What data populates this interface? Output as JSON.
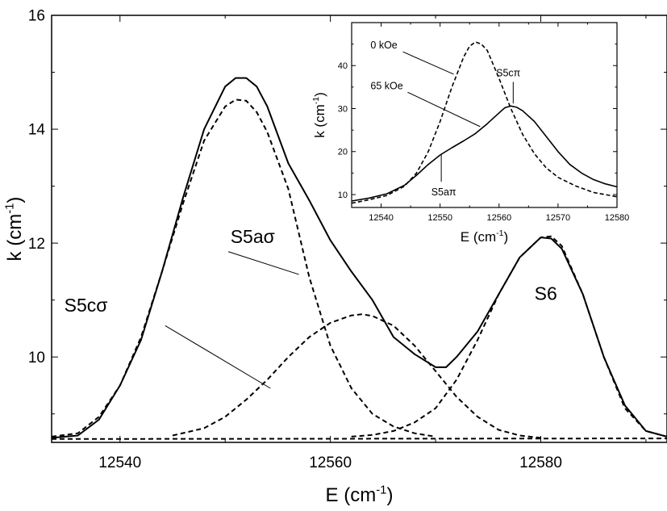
{
  "chart_data": [
    {
      "type": "line",
      "xlabel_base": "E (cm",
      "xlabel_sup": "-1",
      "xlabel_end": ")",
      "ylabel_base": "k (cm",
      "ylabel_sup": "-1",
      "ylabel_end": ")",
      "xlim": [
        12533.5,
        12592
      ],
      "ylim": [
        8.5,
        16
      ],
      "xticks": [
        "12540",
        "12560",
        "12580"
      ],
      "xtick_values": [
        12540,
        12560,
        12580
      ],
      "yticks": [
        "10",
        "12",
        "14",
        "16"
      ],
      "ytick_values": [
        10,
        12,
        14,
        16
      ],
      "grid": false,
      "series": [
        {
          "style": "solid",
          "x": [
            12533.5,
            12536,
            12538,
            12540,
            12542,
            12544,
            12546,
            12548,
            12550,
            12551,
            12552,
            12553,
            12554,
            12556,
            12558,
            12560,
            12562,
            12564,
            12566,
            12568,
            12570,
            12571,
            12572,
            12574,
            12576,
            12578,
            12580,
            12581,
            12582,
            12584,
            12586,
            12588,
            12590,
            12592
          ],
          "y": [
            8.58,
            8.62,
            8.9,
            9.5,
            10.3,
            11.5,
            12.8,
            14.0,
            14.75,
            14.9,
            14.9,
            14.75,
            14.4,
            13.4,
            12.75,
            12.05,
            11.5,
            11.0,
            10.35,
            10.05,
            9.82,
            9.82,
            10.0,
            10.45,
            11.1,
            11.75,
            12.1,
            12.08,
            11.9,
            11.1,
            10.0,
            9.15,
            8.7,
            8.6
          ]
        },
        {
          "style": "dashed",
          "x": [
            12533.5,
            12536,
            12538,
            12540,
            12542,
            12544,
            12546,
            12548,
            12550,
            12551,
            12552,
            12553,
            12554,
            12556,
            12558,
            12560,
            12562,
            12564,
            12566,
            12568,
            12570
          ],
          "y": [
            8.6,
            8.66,
            8.95,
            9.5,
            10.35,
            11.5,
            12.7,
            13.8,
            14.4,
            14.52,
            14.5,
            14.3,
            13.95,
            12.95,
            11.4,
            10.2,
            9.45,
            9.0,
            8.78,
            8.66,
            8.6
          ]
        },
        {
          "style": "dashed",
          "x": [
            12545,
            12548,
            12550,
            12552,
            12554,
            12556,
            12558,
            12560,
            12562,
            12563,
            12564,
            12566,
            12568,
            12570,
            12572,
            12574,
            12576,
            12578,
            12580
          ],
          "y": [
            8.62,
            8.75,
            8.95,
            9.25,
            9.6,
            10.0,
            10.35,
            10.6,
            10.73,
            10.75,
            10.72,
            10.55,
            10.2,
            9.75,
            9.3,
            8.95,
            8.72,
            8.62,
            8.58
          ]
        },
        {
          "style": "dashed",
          "x": [
            12562,
            12564,
            12566,
            12568,
            12570,
            12572,
            12574,
            12576,
            12578,
            12580,
            12581,
            12582,
            12584,
            12586,
            12588,
            12590,
            12592
          ],
          "y": [
            8.6,
            8.63,
            8.7,
            8.85,
            9.1,
            9.6,
            10.3,
            11.1,
            11.75,
            12.1,
            12.12,
            11.95,
            11.1,
            10.0,
            9.1,
            8.7,
            8.6
          ]
        },
        {
          "style": "dashed",
          "x": [
            12533.5,
            12592
          ],
          "y": [
            8.56,
            8.57
          ]
        }
      ],
      "annotations": [
        {
          "text": "S5aσ",
          "x": 12550.5,
          "y": 12.0,
          "ptr_from": [
            12550.3,
            11.85
          ],
          "ptr_to": [
            12557.0,
            11.45
          ]
        },
        {
          "text": "S5cσ",
          "x": 12534.7,
          "y": 10.8,
          "ptr_from": [
            12544.3,
            10.55
          ],
          "ptr_to": [
            12554.3,
            9.45
          ]
        },
        {
          "text": "S6",
          "x": 12579.4,
          "y": 11.0
        }
      ]
    },
    {
      "type": "line",
      "xlabel_base": "E (cm",
      "xlabel_sup": "-1",
      "xlabel_end": ")",
      "ylabel_base": "k (cm",
      "ylabel_sup": "-1",
      "ylabel_end": ")",
      "xlim": [
        12535,
        12580
      ],
      "ylim": [
        7,
        50
      ],
      "xticks": [
        "12540",
        "12550",
        "12560",
        "12570",
        "12580"
      ],
      "xtick_values": [
        12540,
        12550,
        12560,
        12570,
        12580
      ],
      "yticks": [
        "10",
        "20",
        "30",
        "40"
      ],
      "ytick_values": [
        10,
        20,
        30,
        40
      ],
      "grid": false,
      "series": [
        {
          "style": "dashed",
          "x": [
            12535,
            12538,
            12541,
            12544,
            12546,
            12548,
            12550,
            12552,
            12554,
            12555,
            12556,
            12557,
            12558,
            12560,
            12562,
            12564,
            12566,
            12568,
            12570,
            12573,
            12576,
            12580
          ],
          "y": [
            8,
            8.8,
            9.8,
            12,
            15,
            20,
            27,
            35,
            42,
            44.5,
            45.5,
            45,
            43.5,
            37,
            30,
            24,
            19.5,
            16.2,
            14,
            12,
            10.5,
            9.5
          ]
        },
        {
          "style": "solid",
          "x": [
            12535,
            12538,
            12541,
            12544,
            12546,
            12548,
            12550,
            12552,
            12554,
            12556,
            12558,
            12560,
            12561,
            12562,
            12563,
            12564,
            12566,
            12568,
            12570,
            12572,
            12574,
            12576,
            12578,
            12580
          ],
          "y": [
            8.5,
            9.2,
            10.2,
            12.2,
            14.5,
            17,
            19.2,
            20.9,
            22.5,
            24.2,
            26.5,
            29,
            30.2,
            30.6,
            30.3,
            29.5,
            27,
            23.5,
            20,
            17,
            15,
            13.5,
            12.5,
            11.8
          ]
        }
      ],
      "annotations": [
        {
          "text": "0 kOe",
          "x": 12538.2,
          "y": 44,
          "ptr_from": [
            12543.7,
            43.2
          ],
          "ptr_to": [
            12552.3,
            38
          ]
        },
        {
          "text": "65 kOe",
          "x": 12538.2,
          "y": 34.5,
          "ptr_from": [
            12544.5,
            33.8
          ],
          "ptr_to": [
            12556.8,
            25.8
          ]
        },
        {
          "text": "S5cπ",
          "x": 12559.5,
          "y": 37.5,
          "ptr_from": [
            12562.4,
            36.2
          ],
          "ptr_to": [
            12562.4,
            31.2
          ]
        },
        {
          "text": "S5aπ",
          "x": 12548.5,
          "y": 9.8,
          "ptr_from": [
            12550.2,
            13
          ],
          "ptr_to": [
            12550.2,
            19.5
          ]
        }
      ]
    }
  ]
}
